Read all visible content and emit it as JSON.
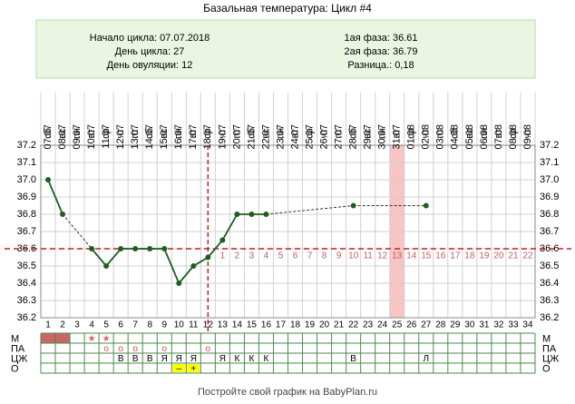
{
  "chart_data": {
    "type": "line",
    "title": "Базальная температура: Цикл #4",
    "info": {
      "cycle_start": "Начало цикла: 07.07.2018",
      "cycle_day": "День цикла: 27",
      "ovulation": "День овуляции: 12",
      "phase1": "1ая фаза: 36.61",
      "phase2": "2ая фаза: 36.79",
      "difference": "Разница.: 0,18"
    },
    "categories": [
      "07.07",
      "08.07",
      "09.07",
      "10.07",
      "11.07",
      "12.07",
      "13.07",
      "14.07",
      "15.07",
      "16.07",
      "17.07",
      "18.07",
      "19.07",
      "20.07",
      "21.07",
      "22.07",
      "23.07",
      "24.07",
      "25.07",
      "26.07",
      "27.07",
      "28.07",
      "29.07",
      "30.07",
      "31.07",
      "01.08",
      "02.08",
      "03.08",
      "04.08",
      "05.08",
      "06.08",
      "07.08",
      "08.08",
      "09.08"
    ],
    "weekdays": [
      "сб",
      "вс",
      "пн",
      "вт",
      "ср",
      "чт",
      "пт",
      "сб",
      "вс",
      "пн",
      "вт",
      "ср",
      "чт",
      "пт",
      "сб",
      "вс",
      "пн",
      "вт",
      "ср",
      "чт",
      "пт",
      "сб",
      "вс",
      "пн",
      "вт",
      "ср",
      "чт",
      "пт",
      "сб",
      "вс",
      "пн",
      "вт",
      "ср",
      "чт"
    ],
    "day_numbers": [
      1,
      2,
      3,
      4,
      5,
      6,
      7,
      8,
      9,
      10,
      11,
      12,
      13,
      14,
      15,
      16,
      17,
      18,
      19,
      20,
      21,
      22,
      23,
      24,
      25,
      26,
      27,
      28,
      29,
      30,
      31,
      32,
      33,
      34
    ],
    "luteal_days": [
      1,
      2,
      3,
      4,
      5,
      6,
      7,
      8,
      9,
      10,
      11,
      12,
      13,
      14,
      15,
      16,
      17,
      18,
      19,
      20,
      21,
      22
    ],
    "values": [
      37.0,
      36.8,
      null,
      36.6,
      36.5,
      36.6,
      36.6,
      36.6,
      36.6,
      36.4,
      36.5,
      36.55,
      36.65,
      36.8,
      36.8,
      36.8,
      null,
      null,
      null,
      null,
      null,
      36.85,
      null,
      null,
      null,
      null,
      36.85,
      null,
      null,
      null,
      null,
      null,
      null,
      null
    ],
    "color": "#1f5e1f",
    "ylim": [
      36.2,
      37.2
    ],
    "yticks": [
      36.2,
      36.3,
      36.4,
      36.5,
      36.6,
      36.7,
      36.8,
      36.9,
      {
        "value": 37,
        "label": "37.0"
      },
      37.1,
      37.2
    ],
    "grid": true,
    "coverline": 36.6,
    "ovulation_day": 12,
    "highlight_day": 25,
    "rows": [
      {
        "label": "М",
        "fill_days": [
          1,
          2
        ],
        "marks": [
          {
            "day": 4,
            "text": "★",
            "color": "#e06060"
          },
          {
            "day": 5,
            "text": "★",
            "color": "#e06060"
          }
        ]
      },
      {
        "label": "ПА",
        "marks": [
          {
            "day": 5,
            "text": "о",
            "color": "#d05050"
          },
          {
            "day": 6,
            "text": "о",
            "color": "#d05050"
          },
          {
            "day": 7,
            "text": "о",
            "color": "#d05050"
          },
          {
            "day": 9,
            "text": "о",
            "color": "#d05050"
          },
          {
            "day": 12,
            "text": "о",
            "color": "#d05050"
          }
        ]
      },
      {
        "label": "ЦЖ",
        "marks": [
          {
            "day": 6,
            "text": "В"
          },
          {
            "day": 7,
            "text": "В"
          },
          {
            "day": 8,
            "text": "В"
          },
          {
            "day": 9,
            "text": "Я"
          },
          {
            "day": 10,
            "text": "Я"
          },
          {
            "day": 11,
            "text": "Я"
          },
          {
            "day": 13,
            "text": "Я"
          },
          {
            "day": 14,
            "text": "К"
          },
          {
            "day": 15,
            "text": "К"
          },
          {
            "day": 16,
            "text": "К"
          },
          {
            "day": 22,
            "text": "В"
          },
          {
            "day": 27,
            "text": "Л"
          }
        ]
      },
      {
        "label": "О",
        "marks": [
          {
            "day": 10,
            "text": "–",
            "fill": "#ffff00"
          },
          {
            "day": 11,
            "text": "+",
            "fill": "#ffff00"
          }
        ]
      }
    ],
    "footer": "Постройте свой график на BabyPlan.ru"
  }
}
